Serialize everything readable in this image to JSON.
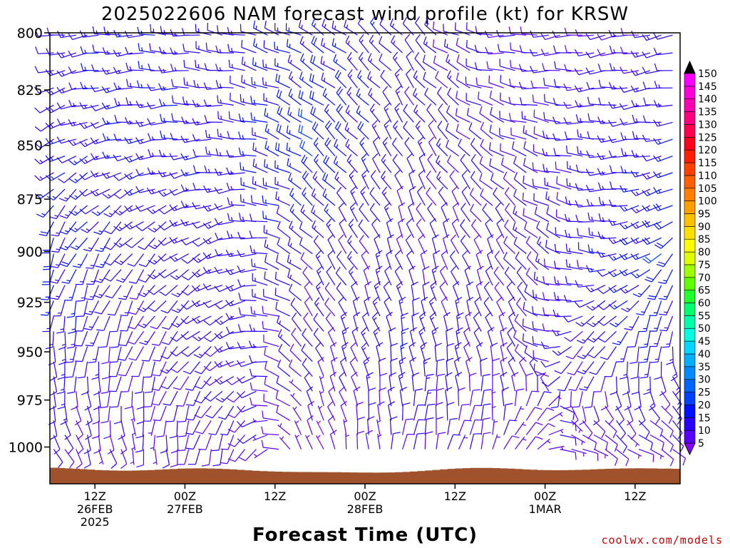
{
  "chart_data": {
    "type": "wind-barb-profile",
    "title": "2025022606 NAM forecast wind profile (kt) for KRSW",
    "xlabel": "Forecast Time (UTC)",
    "ylabel": "",
    "y_ticks": [
      "800",
      "825",
      "850",
      "875",
      "900",
      "925",
      "950",
      "975",
      "1000"
    ],
    "y_range_hpa": [
      800,
      1020
    ],
    "y_scale": "log-pressure",
    "x_ticks": [
      {
        "hour": 6,
        "lines": [
          "12Z",
          "26FEB",
          "2025"
        ]
      },
      {
        "hour": 18,
        "lines": [
          "00Z",
          "27FEB"
        ]
      },
      {
        "hour": 30,
        "lines": [
          "12Z",
          ""
        ]
      },
      {
        "hour": 42,
        "lines": [
          "00Z",
          "28FEB"
        ]
      },
      {
        "hour": 54,
        "lines": [
          "12Z",
          ""
        ]
      },
      {
        "hour": 66,
        "lines": [
          "00Z",
          "1MAR"
        ]
      },
      {
        "hour": 78,
        "lines": [
          "12Z",
          ""
        ]
      }
    ],
    "x_range_hours": [
      0,
      84
    ],
    "colorbar": {
      "values": [
        5,
        10,
        15,
        20,
        25,
        30,
        35,
        40,
        45,
        50,
        55,
        60,
        65,
        70,
        75,
        80,
        85,
        90,
        95,
        100,
        105,
        110,
        115,
        120,
        125,
        130,
        135,
        140,
        145,
        150
      ],
      "colors": [
        "#8a00ff",
        "#5a00ff",
        "#2a00ff",
        "#0010ff",
        "#0040ff",
        "#0065ff",
        "#008cff",
        "#00b0ff",
        "#00d8ff",
        "#00ffe0",
        "#00ffaa",
        "#00ff70",
        "#20ff30",
        "#60ff00",
        "#a0ff00",
        "#e0ff00",
        "#ffff00",
        "#ffe000",
        "#ffc000",
        "#ffa000",
        "#ff8000",
        "#ff6000",
        "#ff4000",
        "#ff2000",
        "#ff0020",
        "#ff0050",
        "#ff0080",
        "#ff00b0",
        "#ff00d8",
        "#ff00ff"
      ],
      "over_color": "#000000"
    },
    "terrain_color": "#a0522d",
    "wind_sample": {
      "pressures_hpa": [
        800,
        850,
        900,
        950,
        1000
      ],
      "times_hours": [
        0,
        12,
        24,
        36,
        48,
        60,
        72,
        84
      ],
      "speed_kt": [
        [
          12,
          14,
          12,
          15,
          12,
          10,
          10,
          12
        ],
        [
          13,
          14,
          13,
          20,
          12,
          10,
          12,
          14
        ],
        [
          18,
          12,
          13,
          12,
          10,
          10,
          12,
          20
        ],
        [
          14,
          10,
          12,
          10,
          14,
          10,
          12,
          14
        ],
        [
          10,
          8,
          10,
          6,
          10,
          8,
          8,
          8
        ]
      ],
      "direction_deg": [
        [
          260,
          270,
          280,
          300,
          320,
          270,
          260,
          260
        ],
        [
          240,
          260,
          270,
          310,
          330,
          300,
          270,
          260
        ],
        [
          200,
          220,
          250,
          320,
          340,
          330,
          280,
          220
        ],
        [
          180,
          200,
          240,
          330,
          350,
          340,
          220,
          170
        ],
        [
          150,
          170,
          200,
          340,
          10,
          20,
          120,
          120
        ]
      ]
    }
  },
  "footer": {
    "credit": "coolwx.com/models"
  }
}
